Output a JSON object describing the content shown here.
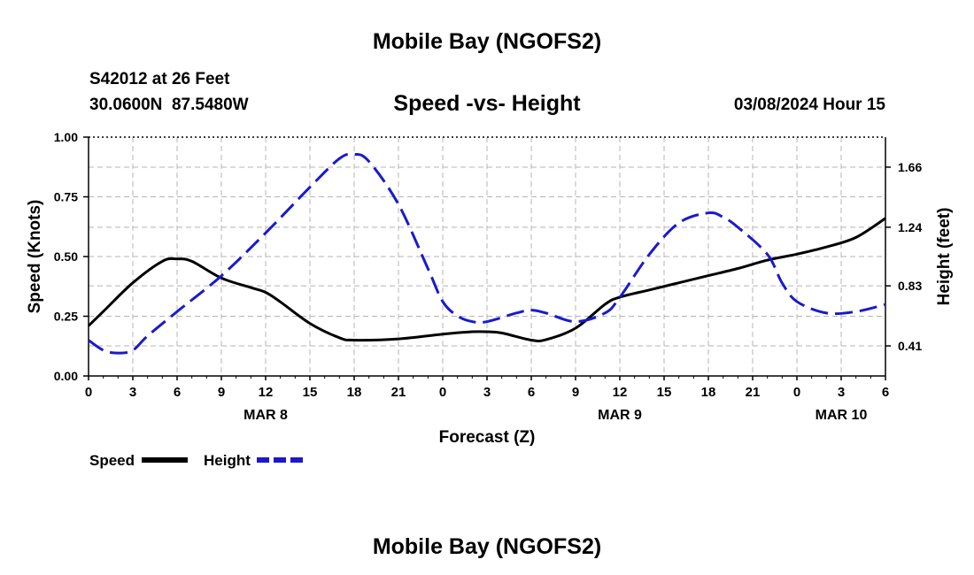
{
  "header": {
    "title_top": "Mobile Bay (NGOFS2)",
    "station": "S42012 at 26 Feet",
    "coords": "30.0600N  87.5480W",
    "subtitle": "Speed -vs- Height",
    "datetime": "03/08/2024 Hour 15",
    "title_bottom": "Mobile Bay (NGOFS2)"
  },
  "chart_data": {
    "type": "line",
    "title": "Speed -vs- Height",
    "xlabel": "Forecast (Z)",
    "ylabel_left": "Speed (Knots)",
    "ylabel_right": "Height (feet)",
    "x_unit": "hours from 00Z Mar 8",
    "xlim": [
      0,
      54
    ],
    "ylim_left": [
      0,
      1.0
    ],
    "ylim_right": [
      0.2,
      1.87
    ],
    "x_ticks": [
      0,
      3,
      6,
      9,
      12,
      15,
      18,
      21,
      24,
      27,
      30,
      33,
      36,
      39,
      42,
      45,
      48,
      51,
      54
    ],
    "x_tick_labels": [
      "0",
      "3",
      "6",
      "9",
      "12",
      "15",
      "18",
      "21",
      "0",
      "3",
      "6",
      "9",
      "12",
      "15",
      "18",
      "21",
      "0",
      "3",
      "6"
    ],
    "day_labels": [
      {
        "x": 12,
        "label": "MAR 8"
      },
      {
        "x": 36,
        "label": "MAR 9"
      },
      {
        "x": 51,
        "label": "MAR 10"
      }
    ],
    "y_left_ticks": [
      0,
      0.25,
      0.5,
      0.75,
      1.0
    ],
    "y_left_tick_labels": [
      "0.00",
      "0.25",
      "0.50",
      "0.75",
      "1.00"
    ],
    "y_right_ticks": [
      0.41,
      0.83,
      1.24,
      1.66
    ],
    "y_right_tick_labels": [
      "0.41",
      "0.83",
      "1.24",
      "1.66"
    ],
    "grid": true,
    "legend_position": "bottom-left",
    "series": [
      {
        "name": "Speed",
        "axis": "left",
        "color": "#000000",
        "dash": "solid",
        "x": [
          0,
          1,
          3,
          5,
          6,
          7,
          9,
          11,
          12,
          13,
          15,
          17,
          18,
          21,
          24,
          26,
          27,
          28,
          30,
          31,
          33,
          35,
          36,
          38,
          40,
          42,
          44,
          46,
          48,
          50,
          52,
          54
        ],
        "y": [
          0.21,
          0.27,
          0.39,
          0.48,
          0.49,
          0.48,
          0.41,
          0.37,
          0.35,
          0.31,
          0.22,
          0.16,
          0.15,
          0.155,
          0.175,
          0.185,
          0.185,
          0.18,
          0.15,
          0.152,
          0.2,
          0.3,
          0.33,
          0.36,
          0.39,
          0.42,
          0.45,
          0.485,
          0.51,
          0.54,
          0.58,
          0.66
        ]
      },
      {
        "name": "Height",
        "axis": "right",
        "color": "#1a1acc",
        "dash": "dashed",
        "x": [
          0,
          1,
          2,
          3,
          4,
          6,
          9,
          12,
          15,
          17,
          18,
          19,
          21,
          23,
          24,
          25,
          26,
          27,
          29,
          30,
          31,
          33,
          35,
          36,
          38,
          40,
          42,
          43,
          44,
          46,
          47,
          48,
          50,
          52,
          54
        ],
        "y": [
          0.45,
          0.38,
          0.36,
          0.38,
          0.48,
          0.65,
          0.9,
          1.2,
          1.52,
          1.72,
          1.75,
          1.7,
          1.4,
          0.95,
          0.72,
          0.62,
          0.58,
          0.58,
          0.64,
          0.66,
          0.64,
          0.58,
          0.64,
          0.75,
          1.05,
          1.27,
          1.34,
          1.31,
          1.24,
          1.05,
          0.85,
          0.72,
          0.64,
          0.65,
          0.7
        ]
      }
    ]
  }
}
